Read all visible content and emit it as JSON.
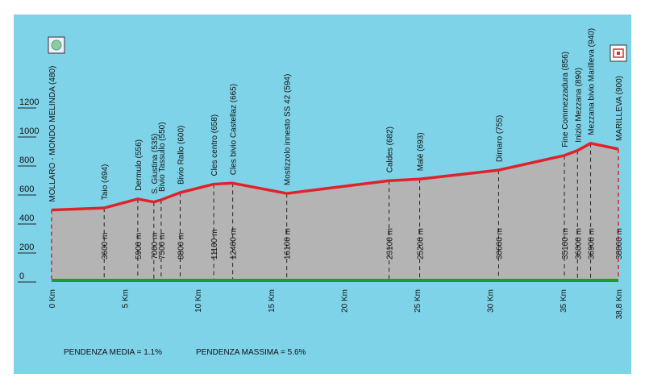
{
  "chart_data": {
    "type": "area",
    "title": "",
    "xlabel": "",
    "ylabel": "",
    "xlim": [
      0,
      38.8
    ],
    "ylim": [
      0,
      1200
    ],
    "y_ticks": [
      0,
      200,
      400,
      600,
      800,
      1000,
      1200
    ],
    "x_ticks": [
      {
        "v": 0,
        "label": "0 Km"
      },
      {
        "v": 5,
        "label": "5 Km"
      },
      {
        "v": 10,
        "label": "10 Km"
      },
      {
        "v": 15,
        "label": "15 Km"
      },
      {
        "v": 20,
        "label": "20 Km"
      },
      {
        "v": 25,
        "label": "25 Km"
      },
      {
        "v": 30,
        "label": "30 Km"
      },
      {
        "v": 35,
        "label": "35 Km"
      },
      {
        "v": 38.8,
        "label": "38,8 Km"
      }
    ],
    "profile": [
      {
        "x": 0,
        "y": 480
      },
      {
        "x": 3.6,
        "y": 494
      },
      {
        "x": 5.9,
        "y": 556
      },
      {
        "x": 7.0,
        "y": 535
      },
      {
        "x": 7.5,
        "y": 550
      },
      {
        "x": 8.8,
        "y": 600
      },
      {
        "x": 11.1,
        "y": 658
      },
      {
        "x": 12.4,
        "y": 665
      },
      {
        "x": 16.1,
        "y": 594
      },
      {
        "x": 23.1,
        "y": 682
      },
      {
        "x": 25.2,
        "y": 693
      },
      {
        "x": 30.6,
        "y": 755
      },
      {
        "x": 35.1,
        "y": 856
      },
      {
        "x": 36.0,
        "y": 890
      },
      {
        "x": 36.9,
        "y": 940
      },
      {
        "x": 38.8,
        "y": 900
      }
    ],
    "waypoints": [
      {
        "x": 0,
        "y": 480,
        "name": "MOLLARO - MONDO MELINDA (480)",
        "km": "",
        "km_x": 0
      },
      {
        "x": 3.6,
        "y": 494,
        "name": "Taio (494)",
        "km": "3600 m",
        "km_x": 3.6
      },
      {
        "x": 5.9,
        "y": 556,
        "name": "Dermulo (556)",
        "km": "5900 m",
        "km_x": 5.9
      },
      {
        "x": 7.0,
        "y": 535,
        "name": "S. Giustina (535)",
        "km": "7000 m",
        "km_x": 7.0
      },
      {
        "x": 7.5,
        "y": 550,
        "name": "Bivio Tassullo (550)",
        "km": "7500 m",
        "km_x": 7.5
      },
      {
        "x": 8.8,
        "y": 600,
        "name": "Bivio Rallo (600)",
        "km": "8800 m",
        "km_x": 8.8
      },
      {
        "x": 11.1,
        "y": 658,
        "name": "Cles centro (658)",
        "km": "11100 m",
        "km_x": 11.1
      },
      {
        "x": 12.4,
        "y": 665,
        "name": "Cles bivio Castellaz (665)",
        "km": "12400 m",
        "km_x": 12.4
      },
      {
        "x": 16.1,
        "y": 594,
        "name": "Mostizzolo innesto SS 42 (594)",
        "km": "16100 m",
        "km_x": 16.1
      },
      {
        "x": 23.1,
        "y": 682,
        "name": "Caldes (682)",
        "km": "23100 m",
        "km_x": 23.1
      },
      {
        "x": 25.2,
        "y": 693,
        "name": "Malé (693)",
        "km": "25200 m",
        "km_x": 25.2
      },
      {
        "x": 30.6,
        "y": 755,
        "name": "Dimaro (755)",
        "km": "30600 m",
        "km_x": 30.6
      },
      {
        "x": 35.1,
        "y": 856,
        "name": "Fine Commezzadura (856)",
        "km": "35100 m",
        "km_x": 35.1
      },
      {
        "x": 36.0,
        "y": 890,
        "name": "Inizio Mezzana (890)",
        "km": "36000 m",
        "km_x": 36.0
      },
      {
        "x": 36.9,
        "y": 940,
        "name": "Mezzana bivio Marilleva (940)",
        "km": "36900 m",
        "km_x": 36.9
      },
      {
        "x": 38.8,
        "y": 900,
        "name": "MARILLEVA (900)",
        "km": "38800 m",
        "km_x": 38.8
      }
    ],
    "colors": {
      "background": "#7fd3e8",
      "area": "#b4b4b4",
      "profile_line": "#e0222b",
      "baseline": "#1e9b2c",
      "dashes": "#222222"
    }
  },
  "footer": {
    "avg_gradient": "PENDENZA MEDIA = 1.1%",
    "max_gradient": "PENDENZA MASSIMA = 5.6%"
  },
  "icons": {
    "start": "start-emblem-icon",
    "finish": "finish-emblem-icon"
  }
}
